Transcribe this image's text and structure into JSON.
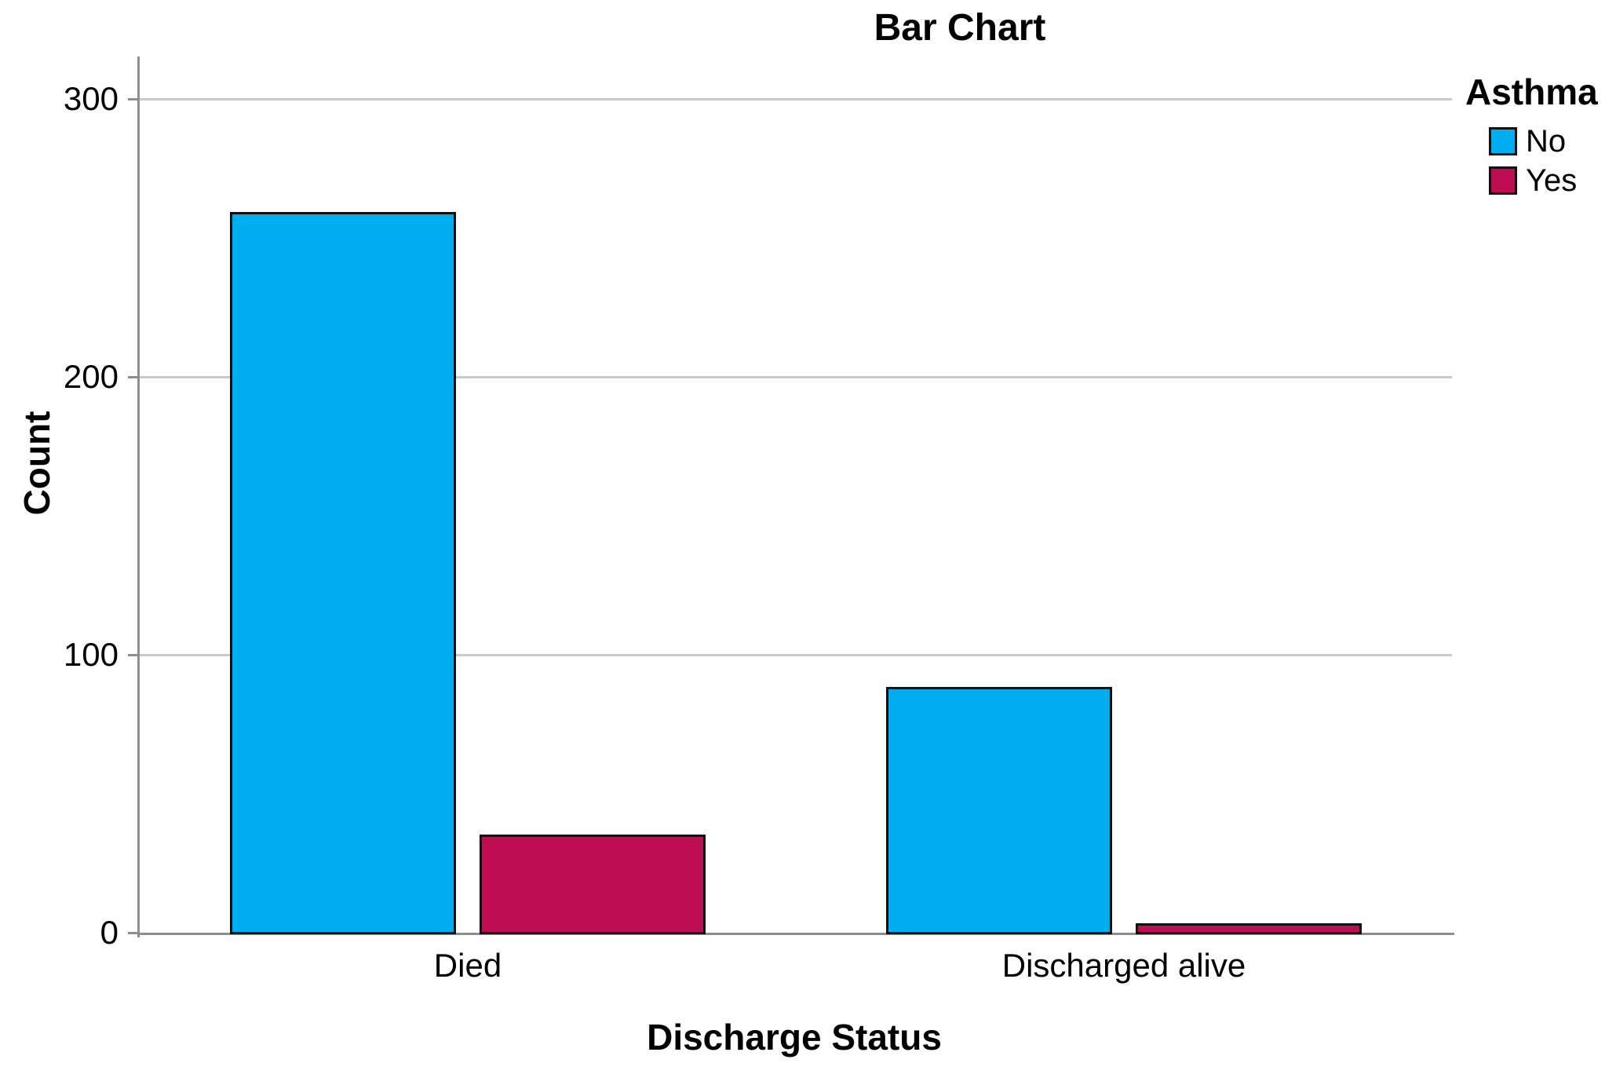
{
  "chart_data": {
    "type": "bar",
    "title": "Bar Chart",
    "xlabel": "Discharge Status",
    "ylabel": "Count",
    "legend_title": "Asthma",
    "legend_position": "top-right",
    "categories": [
      "Died",
      "Discharged alive"
    ],
    "series": [
      {
        "name": "No",
        "color": "#00AEEF",
        "values": [
          260,
          89
        ]
      },
      {
        "name": "Yes",
        "color": "#BE0D52",
        "values": [
          36,
          4
        ]
      }
    ],
    "yticks": [
      0,
      100,
      200,
      300
    ],
    "ylim": [
      0,
      315
    ],
    "grid": "horizontal-gridlines",
    "bar_outline_color": "#101010",
    "axis_color": "#8e8e8e",
    "gridline_color": "#c9c9c9"
  }
}
